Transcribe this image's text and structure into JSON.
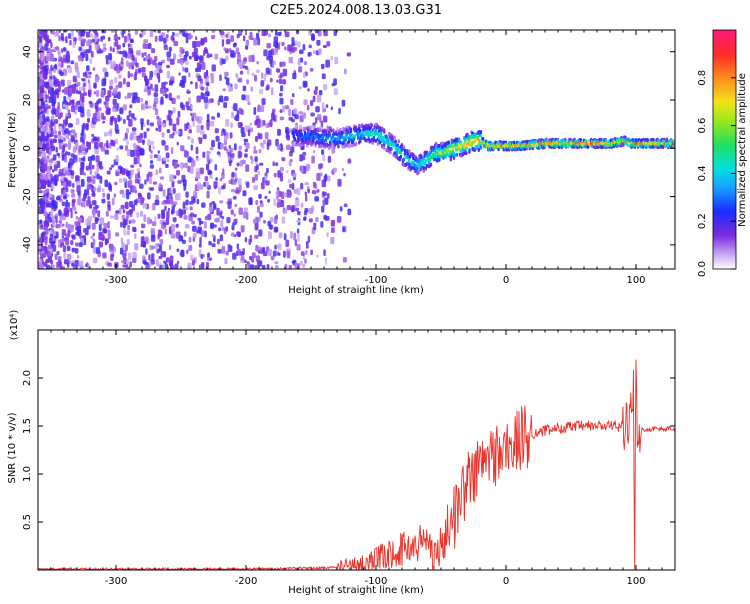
{
  "title": "C2E5.2024.008.13.03.G31",
  "colors": {
    "background": "#ffffff",
    "snr_line": "#e8322a",
    "spectrum_low": "#7f2bdf",
    "spectrum_high": "#ff2020"
  },
  "chart_data": [
    {
      "type": "heatmap",
      "xlabel": "Height of straight line (km)",
      "ylabel": "Frequency (Hz)",
      "xlim": [
        -360,
        130
      ],
      "ylim": [
        -50,
        49
      ],
      "x_ticks": [
        -300,
        -200,
        -100,
        0,
        100
      ],
      "y_ticks": [
        -40,
        -20,
        0,
        20,
        40
      ],
      "colorbar": {
        "label": "Normalized spectral amplitude",
        "range": [
          0,
          1
        ],
        "ticks": [
          "0.0",
          "0.2",
          "0.4",
          "0.6",
          "0.8"
        ],
        "colormap": "rainbow"
      },
      "ridge": {
        "x": [
          -165,
          -150,
          -140,
          -130,
          -120,
          -110,
          -100,
          -95,
          -90,
          -85,
          -80,
          -75,
          -70,
          -65,
          -60,
          -55,
          -50,
          -45,
          -40,
          -35,
          -30,
          -25,
          -20,
          -15,
          -10,
          0,
          10,
          30,
          50,
          80,
          90,
          95,
          110,
          130
        ],
        "frequency": [
          5,
          5,
          4,
          4,
          5,
          6,
          6,
          4,
          2,
          0,
          -3,
          -5,
          -7,
          -6,
          -4,
          -2,
          -2,
          -1,
          0,
          1,
          2,
          3,
          3,
          1,
          1,
          1,
          1,
          2,
          2,
          2,
          3,
          2,
          2,
          2
        ],
        "amplitude": [
          0.3,
          0.35,
          0.4,
          0.4,
          0.45,
          0.45,
          0.5,
          0.5,
          0.5,
          0.5,
          0.5,
          0.45,
          0.45,
          0.5,
          0.55,
          0.6,
          0.65,
          0.7,
          0.75,
          0.8,
          0.85,
          0.85,
          0.85,
          0.85,
          0.85,
          0.85,
          0.85,
          0.9,
          0.9,
          0.9,
          0.9,
          0.9,
          0.9,
          0.9
        ]
      }
    },
    {
      "type": "line",
      "xlabel": "Height of straight line (km)",
      "ylabel": "SNR (10 * v/v)",
      "scale_label": "(x10⁴)",
      "xlim": [
        -360,
        130
      ],
      "ylim": [
        0,
        2.5
      ],
      "x_ticks": [
        -300,
        -200,
        -100,
        0,
        100
      ],
      "y_ticks": [
        "0.5",
        "1.0",
        "1.5",
        "2.0"
      ],
      "series": [
        {
          "x": [
            -360,
            -300,
            -200,
            -150,
            -120,
            -110,
            -100,
            -90,
            -80,
            -70,
            -65,
            -60,
            -55,
            -50,
            -45,
            -40,
            -35,
            -30,
            -25,
            -20,
            -15,
            -10,
            -5,
            0,
            5,
            10,
            20,
            30,
            40,
            60,
            80,
            90,
            95,
            98,
            99,
            100,
            101,
            103,
            110,
            120,
            130
          ],
          "y": [
            0.01,
            0.01,
            0.01,
            0.02,
            0.03,
            0.06,
            0.1,
            0.16,
            0.22,
            0.25,
            0.3,
            0.3,
            0.18,
            0.22,
            0.45,
            0.55,
            0.75,
            0.9,
            1.0,
            1.08,
            1.15,
            1.2,
            1.22,
            1.25,
            1.3,
            1.35,
            1.42,
            1.45,
            1.48,
            1.5,
            1.5,
            1.5,
            1.5,
            1.9,
            0.05,
            2.4,
            1.5,
            1.45,
            1.47,
            1.47,
            1.47
          ]
        }
      ]
    }
  ]
}
